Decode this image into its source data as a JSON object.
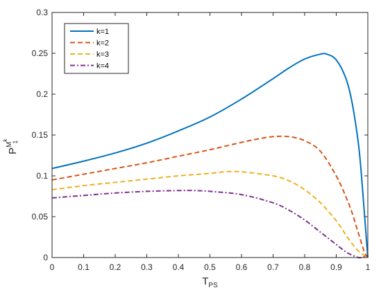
{
  "chart_data": {
    "type": "line",
    "xlabel": {
      "main": "T",
      "sub": "PS"
    },
    "ylabel": {
      "main": "P",
      "sup": "M",
      "supsup": "k",
      "supsub": "1"
    },
    "xlim": [
      0,
      1
    ],
    "ylim": [
      0,
      0.3
    ],
    "xticks": [
      "0",
      "0.1",
      "0.2",
      "0.3",
      "0.4",
      "0.5",
      "0.6",
      "0.7",
      "0.8",
      "0.9",
      "1"
    ],
    "yticks": [
      "0",
      "0.05",
      "0.1",
      "0.15",
      "0.2",
      "0.25",
      "0.3"
    ],
    "xtick_values": [
      0,
      0.1,
      0.2,
      0.3,
      0.4,
      0.5,
      0.6,
      0.7,
      0.8,
      0.9,
      1
    ],
    "ytick_values": [
      0,
      0.05,
      0.1,
      0.15,
      0.2,
      0.25,
      0.3
    ],
    "grid": false,
    "legend_position": "top-left",
    "series": [
      {
        "name": "k=1",
        "color": "#0072BD",
        "style": "solid",
        "x": [
          0,
          0.1,
          0.2,
          0.3,
          0.4,
          0.5,
          0.6,
          0.7,
          0.75,
          0.8,
          0.85,
          0.87,
          0.9,
          0.93,
          0.95,
          0.97,
          0.98,
          0.99,
          1.0
        ],
        "y": [
          0.109,
          0.118,
          0.128,
          0.14,
          0.155,
          0.172,
          0.194,
          0.219,
          0.232,
          0.243,
          0.249,
          0.249,
          0.242,
          0.22,
          0.19,
          0.14,
          0.1,
          0.05,
          0.0
        ]
      },
      {
        "name": "k=2",
        "color": "#D95319",
        "style": "dashed",
        "x": [
          0,
          0.1,
          0.2,
          0.3,
          0.4,
          0.5,
          0.6,
          0.65,
          0.7,
          0.75,
          0.8,
          0.85,
          0.9,
          0.93,
          0.95,
          0.97,
          0.99,
          1.0
        ],
        "y": [
          0.095,
          0.102,
          0.109,
          0.116,
          0.124,
          0.132,
          0.141,
          0.145,
          0.148,
          0.148,
          0.143,
          0.13,
          0.1,
          0.075,
          0.055,
          0.03,
          0.006,
          0.0
        ]
      },
      {
        "name": "k=3",
        "color": "#EDB120",
        "style": "dashed",
        "x": [
          0,
          0.1,
          0.2,
          0.3,
          0.4,
          0.5,
          0.55,
          0.6,
          0.7,
          0.75,
          0.8,
          0.85,
          0.9,
          0.93,
          0.95,
          0.97,
          0.99,
          1.0
        ],
        "y": [
          0.083,
          0.088,
          0.092,
          0.096,
          0.1,
          0.103,
          0.105,
          0.105,
          0.1,
          0.094,
          0.083,
          0.067,
          0.045,
          0.028,
          0.017,
          0.008,
          0.002,
          0.0
        ]
      },
      {
        "name": "k=4",
        "color": "#7E2F8E",
        "style": "dashdot",
        "x": [
          0,
          0.1,
          0.2,
          0.3,
          0.4,
          0.45,
          0.5,
          0.6,
          0.7,
          0.75,
          0.8,
          0.85,
          0.9,
          0.93,
          0.95,
          0.97,
          0.98,
          0.99,
          1.0
        ],
        "y": [
          0.073,
          0.076,
          0.079,
          0.081,
          0.082,
          0.082,
          0.081,
          0.077,
          0.067,
          0.058,
          0.046,
          0.031,
          0.016,
          0.007,
          0.003,
          0.0,
          0.0,
          0.001,
          0.003
        ]
      }
    ]
  }
}
